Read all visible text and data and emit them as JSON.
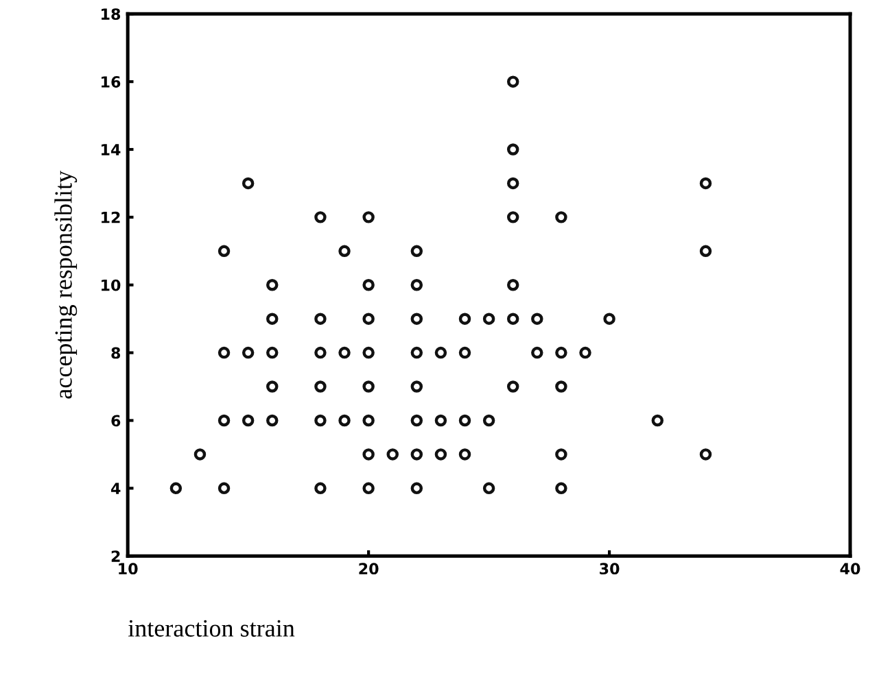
{
  "chart_data": {
    "type": "scatter",
    "xlabel": "interaction strain",
    "ylabel": "accepting responsiblity",
    "x": [
      15,
      18,
      20,
      26,
      28,
      34,
      14,
      19,
      22,
      34,
      16,
      20,
      22,
      26,
      16,
      18,
      20,
      22,
      24,
      25,
      26,
      27,
      30,
      14,
      15,
      16,
      18,
      19,
      20,
      22,
      23,
      24,
      27,
      28,
      29,
      16,
      18,
      20,
      22,
      26,
      28,
      14,
      15,
      16,
      18,
      19,
      20,
      22,
      23,
      24,
      25,
      32,
      13,
      20,
      21,
      22,
      23,
      24,
      28,
      34,
      12,
      14,
      18,
      20,
      22,
      25,
      28,
      26,
      26,
      26
    ],
    "values": [
      13,
      12,
      12,
      12,
      12,
      13,
      11,
      11,
      11,
      11,
      10,
      10,
      10,
      10,
      9,
      9,
      9,
      9,
      9,
      9,
      9,
      9,
      9,
      8,
      8,
      8,
      8,
      8,
      8,
      8,
      8,
      8,
      8,
      8,
      8,
      7,
      7,
      7,
      7,
      7,
      7,
      6,
      6,
      6,
      6,
      6,
      6,
      6,
      6,
      6,
      6,
      6,
      5,
      5,
      5,
      5,
      5,
      5,
      5,
      5,
      4,
      4,
      4,
      4,
      4,
      4,
      4,
      16,
      14,
      13
    ],
    "color": "#111111",
    "marker": "circle",
    "xlim": [
      10,
      40
    ],
    "xticks": [
      10,
      20,
      30,
      40
    ],
    "ylim": [
      2,
      18
    ],
    "yticks": [
      2,
      4,
      6,
      8,
      10,
      12,
      14,
      16,
      18
    ],
    "grid": false
  }
}
